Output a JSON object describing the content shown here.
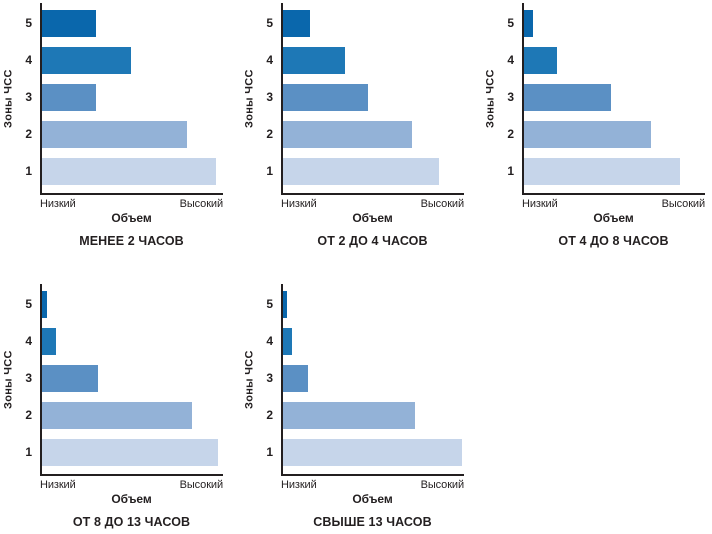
{
  "style": {
    "background": "#ffffff",
    "axis_color": "#231f20",
    "text_color": "#231f20",
    "zone_colors": [
      "#0a67ac",
      "#1e78b6",
      "#5b90c4",
      "#93b2d7",
      "#c6d5ea"
    ]
  },
  "chart_data": [
    {
      "type": "bar",
      "orientation": "horizontal",
      "title": "МЕНЕЕ 2 ЧАСОВ",
      "ylabel": "Зоны ЧСС",
      "xlabel": "Объем",
      "x_min_label": "Низкий",
      "x_max_label": "Высокий",
      "categories": [
        "5",
        "4",
        "3",
        "2",
        "1"
      ],
      "values": [
        30,
        49,
        30,
        80,
        96
      ],
      "xlim": [
        0,
        100
      ],
      "grid": false,
      "legend": false
    },
    {
      "type": "bar",
      "orientation": "horizontal",
      "title": "ОТ 2 ДО 4 ЧАСОВ",
      "ylabel": "Зоны ЧСС",
      "xlabel": "Объем",
      "x_min_label": "Низкий",
      "x_max_label": "Высокий",
      "categories": [
        "5",
        "4",
        "3",
        "2",
        "1"
      ],
      "values": [
        15,
        34,
        47,
        71,
        86
      ],
      "xlim": [
        0,
        100
      ],
      "grid": false,
      "legend": false
    },
    {
      "type": "bar",
      "orientation": "horizontal",
      "title": "ОТ 4 ДО 8 ЧАСОВ",
      "ylabel": "Зоны ЧСС",
      "xlabel": "Объем",
      "x_min_label": "Низкий",
      "x_max_label": "Высокий",
      "categories": [
        "5",
        "4",
        "3",
        "2",
        "1"
      ],
      "values": [
        5,
        18,
        48,
        70,
        86
      ],
      "xlim": [
        0,
        100
      ],
      "grid": false,
      "legend": false
    },
    {
      "type": "bar",
      "orientation": "horizontal",
      "title": "ОТ 8 ДО 13 ЧАСОВ",
      "ylabel": "Зоны ЧСС",
      "xlabel": "Объем",
      "x_min_label": "Низкий",
      "x_max_label": "Высокий",
      "categories": [
        "5",
        "4",
        "3",
        "2",
        "1"
      ],
      "values": [
        2.5,
        7.5,
        31,
        83,
        97
      ],
      "xlim": [
        0,
        100
      ],
      "grid": false,
      "legend": false
    },
    {
      "type": "bar",
      "orientation": "horizontal",
      "title": "СВЫШЕ 13 ЧАСОВ",
      "ylabel": "Зоны ЧСС",
      "xlabel": "Объем",
      "x_min_label": "Низкий",
      "x_max_label": "Высокий",
      "categories": [
        "5",
        "4",
        "3",
        "2",
        "1"
      ],
      "values": [
        2,
        5,
        14,
        73,
        99
      ],
      "xlim": [
        0,
        100
      ],
      "grid": false,
      "legend": false
    }
  ]
}
